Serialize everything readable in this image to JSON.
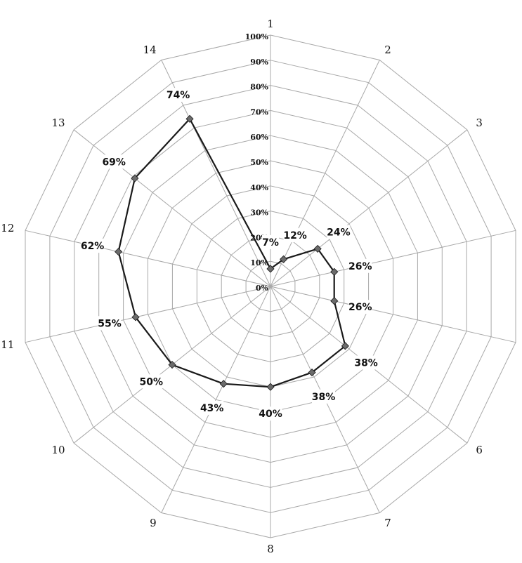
{
  "chart_data": {
    "type": "radar",
    "categories": [
      "1",
      "2",
      "3",
      "4",
      "5",
      "6",
      "7",
      "8",
      "9",
      "10",
      "11",
      "12",
      "13",
      "14"
    ],
    "series": [
      {
        "values": [
          7,
          12,
          24,
          26,
          26,
          38,
          38,
          40,
          43,
          50,
          55,
          62,
          69,
          74
        ],
        "labels": [
          "7%",
          "12%",
          "24%",
          "26%",
          "26%",
          "38%",
          "38%",
          "40%",
          "43%",
          "50%",
          "55%",
          "62%",
          "69%",
          "74%"
        ]
      }
    ],
    "rlim": [
      0,
      100
    ],
    "r_ticks": [
      0,
      10,
      20,
      30,
      40,
      50,
      60,
      70,
      80,
      90,
      100
    ],
    "r_tick_labels": [
      "0%",
      "10%",
      "20%",
      "30%",
      "40%",
      "50%",
      "60%",
      "70%",
      "80%",
      "90%",
      "100%"
    ],
    "grid": true,
    "legend": "none",
    "colors": {
      "line": "#1a1a1a",
      "marker": "#6b6b6b",
      "grid": "#a8a8a8"
    }
  }
}
